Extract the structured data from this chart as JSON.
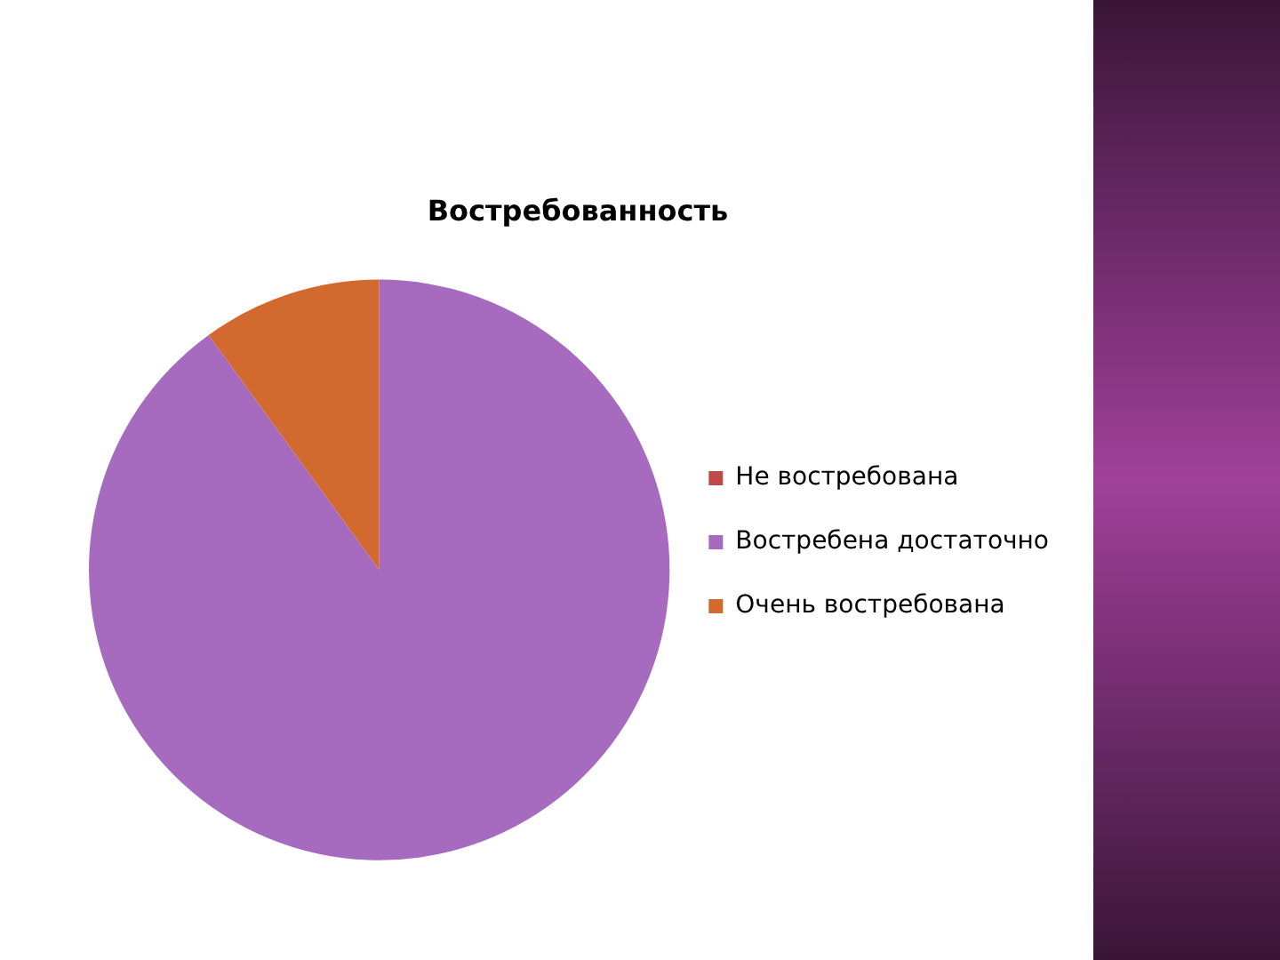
{
  "chart_data": {
    "type": "pie",
    "title": "Востребованность",
    "categories": [
      "Не востребована",
      "Востребена достаточно",
      "Очень востребована"
    ],
    "values": [
      0,
      90,
      10
    ],
    "colors": [
      "#be4b48",
      "#a66bbf",
      "#d2692e"
    ],
    "legend": "right"
  }
}
